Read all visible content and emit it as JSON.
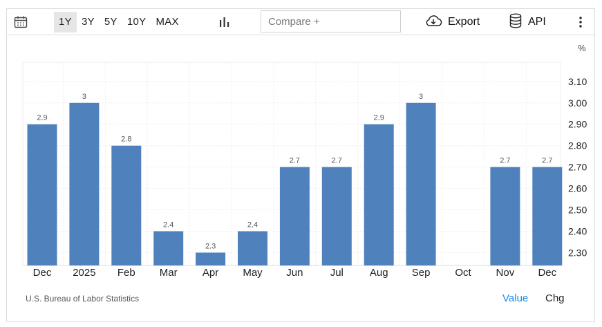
{
  "toolbar": {
    "calendar_icon": "calendar-icon",
    "ranges": [
      "1Y",
      "3Y",
      "5Y",
      "10Y",
      "MAX"
    ],
    "active_range": "1Y",
    "chart_type_icon": "bar-chart-icon",
    "compare_placeholder": "Compare +",
    "compare_value": "",
    "export_label": "Export",
    "export_icon": "cloud-download-icon",
    "api_label": "API",
    "api_icon": "database-icon",
    "more_icon": "vertical-ellipsis-icon"
  },
  "chart_data": {
    "type": "bar",
    "categories": [
      "Dec",
      "2025",
      "Feb",
      "Mar",
      "Apr",
      "May",
      "Jun",
      "Jul",
      "Aug",
      "Sep",
      "Oct",
      "Nov",
      "Dec"
    ],
    "values": [
      2.9,
      3,
      2.8,
      2.4,
      2.3,
      2.4,
      2.7,
      2.7,
      2.9,
      3,
      null,
      2.7,
      2.7
    ],
    "data_labels": [
      "2.9",
      "3",
      "2.8",
      "2.4",
      "2.3",
      "2.4",
      "2.7",
      "2.7",
      "2.9",
      "3",
      "",
      "2.7",
      "2.7"
    ],
    "unit": "%",
    "y_ticks": [
      "2.30",
      "2.40",
      "2.50",
      "2.60",
      "2.70",
      "2.80",
      "2.90",
      "3.00",
      "3.10"
    ],
    "ylim": [
      2.24,
      3.19
    ],
    "y_axis_side": "right",
    "grid": true,
    "bar_color": "#4f81bd",
    "label_color": "#555555"
  },
  "footer": {
    "source": "U.S. Bureau of Labor Statistics",
    "value_label": "Value",
    "chg_label": "Chg",
    "value_color": "#1e88e5"
  }
}
